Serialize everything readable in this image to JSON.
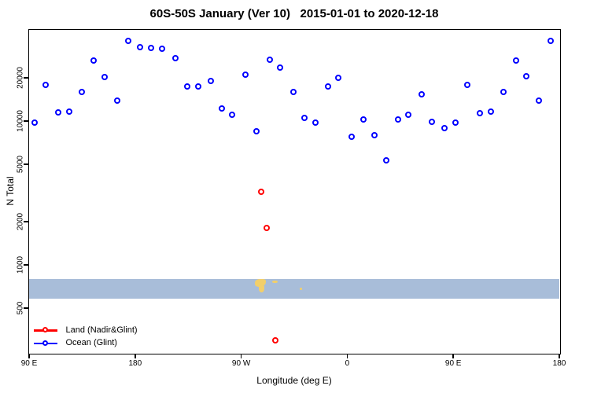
{
  "title": "60S-50S January (Ver 10)   2015-01-01 to 2020-12-18",
  "axes": {
    "x_label": "Longitude (deg E)",
    "y_label": "N Total",
    "x_range": [
      90,
      540
    ],
    "y_log_min": 2.389,
    "y_log_max": 4.6335,
    "x_ticks": [
      {
        "x": 90,
        "label": "90 E"
      },
      {
        "x": 180,
        "label": "180"
      },
      {
        "x": 270,
        "label": "90 W"
      },
      {
        "x": 360,
        "label": "0"
      },
      {
        "x": 450,
        "label": "90 E"
      },
      {
        "x": 540,
        "label": "180"
      }
    ],
    "y_ticks": [
      {
        "v": 500,
        "label": "500"
      },
      {
        "v": 1000,
        "label": "1000"
      },
      {
        "v": 2000,
        "label": "2000"
      },
      {
        "v": 5000,
        "label": "5000"
      },
      {
        "v": 10000,
        "label": "10000"
      },
      {
        "v": 20000,
        "label": "20000"
      }
    ]
  },
  "legend": {
    "items": [
      {
        "label": "Land (Nadir&Glint)",
        "color": "#ff0000"
      },
      {
        "label": "Ocean (Glint)",
        "color": "#0000ff"
      }
    ]
  },
  "map_band": {
    "color": "#a8bdd9",
    "top_value": 780,
    "bottom_value": 570,
    "land_color": "#f2cf6b",
    "land_shapes": [
      {
        "name": "patagonia-main",
        "t0": 283.1,
        "t1": 292.2,
        "f0": 0.0,
        "f1": 0.42,
        "radius": "45% 25% 60% 35%"
      },
      {
        "name": "patagonia-tail",
        "t0": 286.0,
        "t1": 290.8,
        "f0": 0.34,
        "f1": 0.7,
        "radius": "20% 30% 60% 60%"
      },
      {
        "name": "falkland-islands",
        "t0": 297.5,
        "t1": 302.0,
        "f0": 0.08,
        "f1": 0.22,
        "radius": "40%"
      },
      {
        "name": "south-georgia",
        "t0": 320.9,
        "t1": 323.2,
        "f0": 0.44,
        "f1": 0.58,
        "radius": "40%"
      }
    ]
  },
  "chart_data": {
    "type": "scatter",
    "title": "60S-50S January (Ver 10)   2015-01-01 to 2020-12-18",
    "xlabel": "Longitude (deg E)",
    "ylabel": "N Total",
    "y_scale": "log10",
    "x_axis_note": "unwrapped longitude in deg E: 90E -> 180 -> 90W(270) -> 0(360) -> 90E(450) -> 180(540)",
    "xlim": [
      90,
      540
    ],
    "ylim": [
      245,
      43000
    ],
    "marker": "open-circle",
    "legend_position": "bottom-left",
    "grid": false,
    "series": [
      {
        "name": "Land (Nadir&Glint)",
        "color": "#ff0000",
        "points": [
          [
            288.7,
            3140
          ],
          [
            293.3,
            1760
          ],
          [
            300.9,
            290
          ]
        ]
      },
      {
        "name": "Ocean (Glint)",
        "color": "#0000ff",
        "points": [
          [
            96.2,
            9400
          ],
          [
            105.5,
            17200
          ],
          [
            116.2,
            11100
          ],
          [
            126.0,
            11300
          ],
          [
            136.2,
            15500
          ],
          [
            146.2,
            25600
          ],
          [
            155.8,
            19700
          ],
          [
            166.5,
            13400
          ],
          [
            175.5,
            35100
          ],
          [
            185.5,
            31800
          ],
          [
            194.9,
            31400
          ],
          [
            204.7,
            30900
          ],
          [
            216.0,
            26600
          ],
          [
            226.2,
            16800
          ],
          [
            235.1,
            16800
          ],
          [
            246.2,
            18500
          ],
          [
            255.1,
            11800
          ],
          [
            264.0,
            10700
          ],
          [
            275.1,
            20300
          ],
          [
            284.9,
            8200
          ],
          [
            295.8,
            26000
          ],
          [
            304.7,
            22800
          ],
          [
            316.0,
            15500
          ],
          [
            325.1,
            10200
          ],
          [
            334.9,
            9400
          ],
          [
            345.5,
            16800
          ],
          [
            354.0,
            19300
          ],
          [
            365.1,
            7500
          ],
          [
            375.5,
            10000
          ],
          [
            384.5,
            7700
          ],
          [
            394.5,
            5200
          ],
          [
            405.1,
            9900
          ],
          [
            413.8,
            10700
          ],
          [
            424.9,
            14800
          ],
          [
            433.8,
            9600
          ],
          [
            444.2,
            8700
          ],
          [
            453.8,
            9400
          ],
          [
            463.8,
            17200
          ],
          [
            474.2,
            11000
          ],
          [
            483.8,
            11300
          ],
          [
            494.2,
            15400
          ],
          [
            504.7,
            25500
          ],
          [
            513.8,
            19800
          ],
          [
            524.2,
            13500
          ],
          [
            534.2,
            34900
          ]
        ]
      }
    ]
  }
}
